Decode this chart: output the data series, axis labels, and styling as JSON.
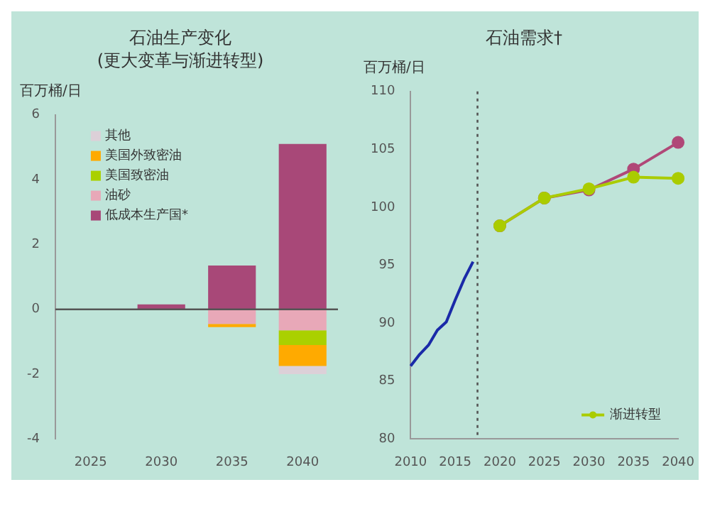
{
  "chart_data": [
    {
      "type": "bar",
      "title": "石油生产变化",
      "subtitle": "(更大变革与渐进转型)",
      "ylabel": "百万桶/日",
      "categories": [
        "2025",
        "2030",
        "2035",
        "2040"
      ],
      "stacked": true,
      "legend": "top left",
      "grid": false,
      "ylim": [
        -4,
        6
      ],
      "yticks": [
        -4,
        -2,
        0,
        2,
        4,
        6
      ],
      "ref_lines": [
        {
          "axis": "y",
          "value": 0,
          "color": "#555555",
          "line_style": "solid"
        }
      ],
      "series": [
        {
          "name": "低成本生产国*",
          "color": "#a84878",
          "values": [
            null,
            0.15,
            1.35,
            5.1
          ]
        },
        {
          "name": "油砂",
          "color": "#e8a8b8",
          "values": [
            null,
            null,
            -0.45,
            -0.65
          ]
        },
        {
          "name": "美国致密油",
          "color": "#aad000",
          "values": [
            null,
            null,
            null,
            -0.45
          ]
        },
        {
          "name": "美国外致密油",
          "color": "#ffaa00",
          "values": [
            null,
            null,
            -0.1,
            -0.65
          ]
        },
        {
          "name": "其他",
          "color": "#dcd0d8",
          "values": [
            null,
            null,
            null,
            -0.25
          ]
        }
      ]
    },
    {
      "type": "line",
      "title": "石油需求†",
      "ylabel": "百万桶/日",
      "legend": "bottom right",
      "grid": false,
      "xlim": [
        2010,
        2040
      ],
      "xticks": [
        2010,
        2015,
        2020,
        2025,
        2030,
        2035,
        2040
      ],
      "ylim": [
        80,
        110
      ],
      "yticks": [
        80,
        85,
        90,
        95,
        100,
        105,
        110
      ],
      "ref_lines": [
        {
          "axis": "x",
          "value": 2017.5,
          "color": "#555555",
          "line_style": "dotted"
        }
      ],
      "series": [
        {
          "color": "#1a2aa8",
          "marker": "none",
          "x": [
            2010,
            2011,
            2012,
            2013,
            2014,
            2015,
            2016,
            2017
          ],
          "values": [
            86.3,
            87.3,
            88.1,
            89.4,
            90.1,
            92.0,
            93.8,
            95.3
          ]
        },
        {
          "color": "#b04878",
          "marker": "circle",
          "x": [
            2020,
            2025,
            2030,
            2035,
            2040
          ],
          "values": [
            98.4,
            100.8,
            101.5,
            103.3,
            105.6
          ]
        },
        {
          "name": "渐进转型",
          "color": "#aacc00",
          "marker": "circle",
          "x": [
            2020,
            2025,
            2030,
            2035,
            2040
          ],
          "values": [
            98.4,
            100.8,
            101.6,
            102.6,
            102.5
          ]
        }
      ]
    }
  ]
}
